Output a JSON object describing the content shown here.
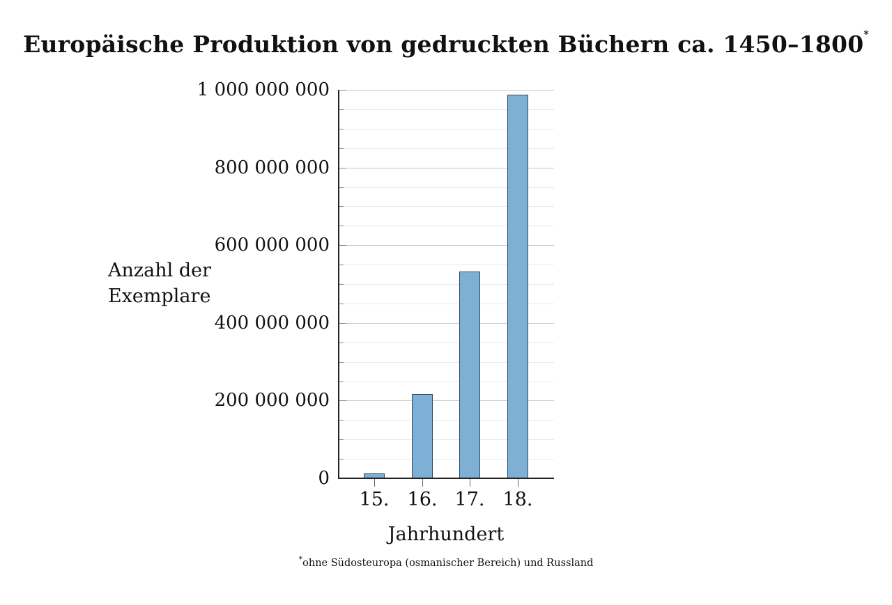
{
  "title": {
    "text": "Europäische Produktion von gedruckten Büchern ca. 1450–1800",
    "footnote_marker": "*"
  },
  "footnote": {
    "marker": "*",
    "text": "ohne Südosteuropa (osmanischer Bereich) und Russland"
  },
  "axes": {
    "xlabel": "Jahrhundert",
    "ylabel_line1": "Anzahl der",
    "ylabel_line2": "Exemplare",
    "yticks": [
      "0",
      "200 000 000",
      "400 000 000",
      "600 000 000",
      "800 000 000",
      "1 000 000 000"
    ],
    "xticks": [
      "15.",
      "16.",
      "17.",
      "18."
    ]
  },
  "colors": {
    "bar_fill": "#7eb0d5",
    "bar_edge": "#2f4a60",
    "grid_major": "#c8c8c8",
    "grid_minor": "#e8e8e8"
  },
  "chart_data": {
    "type": "bar",
    "title": "Europäische Produktion von gedruckten Büchern ca. 1450–1800*",
    "subtitle": "",
    "categories": [
      "15.",
      "16.",
      "17.",
      "18."
    ],
    "values": [
      12600000,
      217400000,
      533000000,
      987000000
    ],
    "xlabel": "Jahrhundert",
    "ylabel": "Anzahl der Exemplare",
    "ylim": [
      0,
      1000000000
    ],
    "yticks": [
      0,
      200000000,
      400000000,
      600000000,
      800000000,
      1000000000
    ],
    "minor_yticks_step": 50000000,
    "grid": true,
    "legend": null,
    "annotations": [
      "* ohne Südosteuropa (osmanischer Bereich) und Russland"
    ]
  }
}
